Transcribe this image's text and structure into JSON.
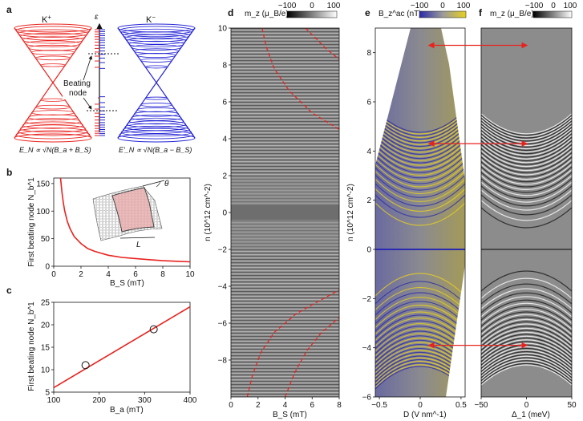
{
  "panels": {
    "a": {
      "label": "a",
      "cone_left": "K",
      "cone_left_sup": "+",
      "cone_right": "K",
      "cone_right_sup": "−",
      "energy_axis": "ε",
      "annotation_line1": "Beating",
      "annotation_line2": "node",
      "formula_left": "E_N ∝ √N(B_a + B_S)",
      "formula_right": "E'_N ∝ √N(B_a − B_S)",
      "colors": {
        "left": "#e8231f",
        "right": "#2323d6"
      }
    },
    "b": {
      "label": "b",
      "inset_angle": "θ",
      "inset_length": "L"
    },
    "c": {
      "label": "c"
    },
    "d": {
      "label": "d",
      "colorbar_title": "m_z (μ_B/e)",
      "colorbar_ticks": [
        "−100",
        "0",
        "100"
      ]
    },
    "e": {
      "label": "e",
      "colorbar_title": "B_z^ac (nT)",
      "colorbar_ticks": [
        "−100",
        "0",
        "100"
      ]
    },
    "f": {
      "label": "f",
      "colorbar_title": "m_z (μ_B/e)",
      "colorbar_ticks": [
        "−100",
        "0",
        "100"
      ]
    }
  },
  "chart_data": [
    {
      "id": "b",
      "type": "line",
      "title": "",
      "xlabel": "B_S (mT)",
      "ylabel": "First beating node N_b^1",
      "xlim": [
        0,
        10
      ],
      "ylim": [
        0,
        160
      ],
      "xticks": [
        "0",
        "2",
        "4",
        "6",
        "8",
        "10"
      ],
      "yticks": [
        "0",
        "50",
        "100",
        "150"
      ],
      "series": [
        {
          "x": [
            0.5,
            0.6,
            0.7,
            0.8,
            1.0,
            1.2,
            1.5,
            2.0,
            2.5,
            3.0,
            4.0,
            5.0,
            6.0,
            7.0,
            8.0,
            9.0,
            10.0
          ],
          "values": [
            162,
            135,
            116,
            101,
            81,
            68,
            54,
            41,
            32,
            27,
            20,
            16,
            14,
            12,
            10,
            9,
            8
          ]
        }
      ],
      "grid": false,
      "color": "#e8231f"
    },
    {
      "id": "c",
      "type": "scatter",
      "title": "",
      "xlabel": "B_a (mT)",
      "ylabel": "First beating node N_b^1",
      "xlim": [
        100,
        400
      ],
      "ylim": [
        5,
        25
      ],
      "xticks": [
        "100",
        "200",
        "300",
        "400"
      ],
      "yticks": [
        "5",
        "10",
        "15",
        "20",
        "25"
      ],
      "points": {
        "x": [
          170,
          320
        ],
        "values": [
          11,
          19
        ]
      },
      "fit_line": {
        "x": [
          100,
          400
        ],
        "values": [
          6,
          24
        ]
      },
      "grid": false,
      "color": "#e8231f"
    },
    {
      "id": "d",
      "type": "heatmap",
      "title": "",
      "xlabel": "B_S (mT)",
      "ylabel": "n (10^12 cm^-2)",
      "xlim": [
        0,
        8
      ],
      "ylim": [
        -10,
        10
      ],
      "xticks": [
        "0",
        "2",
        "4",
        "6",
        "8"
      ],
      "yticks": [
        "−8",
        "−6",
        "−4",
        "−2",
        "0",
        "2",
        "4",
        "6",
        "8",
        "10"
      ],
      "dashed_curves": [
        {
          "x": [
            2.3,
            2.6,
            3.2,
            4.3,
            6.0,
            8.0
          ],
          "values": [
            10,
            9.0,
            7.8,
            6.6,
            5.4,
            4.5
          ]
        },
        {
          "x": [
            5.5,
            6.2,
            7.0,
            8.0
          ],
          "values": [
            10,
            9.5,
            8.9,
            8.3
          ]
        },
        {
          "x": [
            1.2,
            1.6,
            2.2,
            3.2,
            4.8,
            6.5,
            8.0
          ],
          "values": [
            -10,
            -8.8,
            -7.6,
            -6.5,
            -5.5,
            -4.8,
            -4.2
          ]
        },
        {
          "x": [
            4.0,
            4.7,
            5.6,
            6.7,
            8.0
          ],
          "values": [
            -10,
            -8.7,
            -7.5,
            -6.5,
            -5.7
          ]
        }
      ]
    },
    {
      "id": "e",
      "type": "heatmap",
      "title": "",
      "xlabel": "D (V nm^-1)",
      "ylabel": "n (10^12 cm^-2)",
      "xlim": [
        -0.55,
        0.55
      ],
      "ylim": [
        -6,
        9
      ],
      "xticks": [
        "−0.5",
        "0",
        "0.5"
      ],
      "yticks": [
        "−6",
        "−4",
        "−2",
        "0",
        "2",
        "4",
        "6",
        "8"
      ]
    },
    {
      "id": "f",
      "type": "heatmap",
      "title": "",
      "xlabel": "Δ_1 (meV)",
      "ylabel": "",
      "xlim": [
        -50,
        50
      ],
      "ylim": [
        -6,
        9
      ],
      "xticks": [
        "−50",
        "0",
        "50"
      ],
      "yticks": [],
      "arrow_levels_n": [
        8.3,
        4.3,
        -3.9
      ]
    }
  ]
}
